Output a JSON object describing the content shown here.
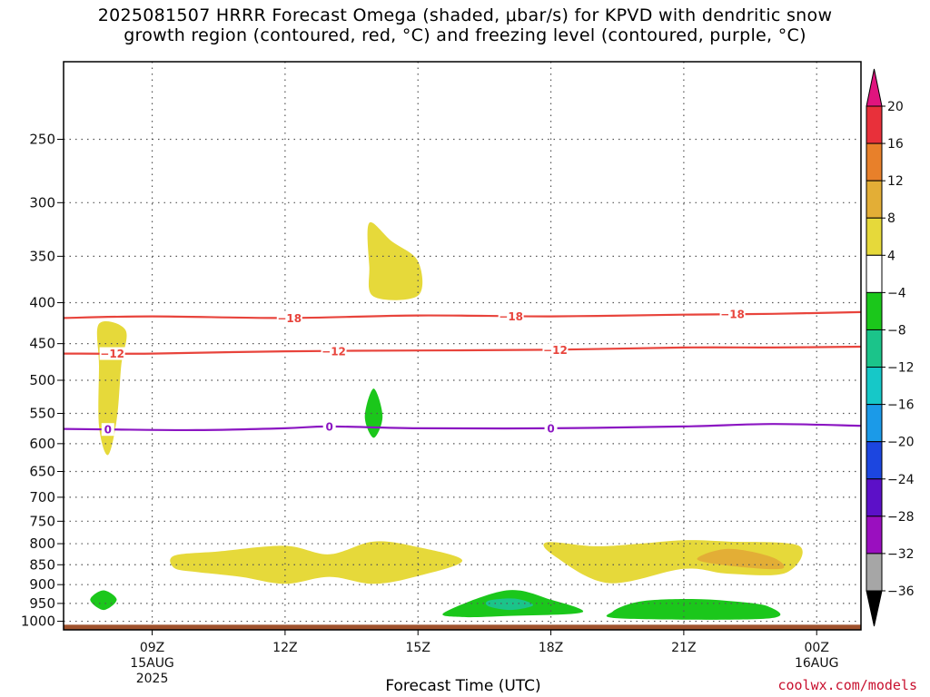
{
  "chart_data": {
    "type": "contour",
    "title_line1": "2025081507 HRRR Forecast Omega (shaded, μbar/s) for KPVD with dendritic snow",
    "title_line2": "growth region (contoured, red, °C) and freezing level (contoured, purple, °C)",
    "xlabel": "Forecast Time (UTC)",
    "ylabel": "",
    "y_axis": {
      "scale": "log-pressure",
      "ticks": [
        250,
        300,
        350,
        400,
        450,
        500,
        550,
        600,
        650,
        700,
        750,
        800,
        850,
        900,
        950,
        1000
      ],
      "range_hPa": [
        200,
        1025
      ],
      "grid": true
    },
    "x_axis": {
      "range_hours": [
        7,
        25
      ],
      "ticks": [
        {
          "hour": 9,
          "label": "09Z",
          "sub1": "15AUG",
          "sub2": "2025"
        },
        {
          "hour": 12,
          "label": "12Z",
          "sub1": "",
          "sub2": ""
        },
        {
          "hour": 15,
          "label": "15Z",
          "sub1": "",
          "sub2": ""
        },
        {
          "hour": 18,
          "label": "18Z",
          "sub1": "",
          "sub2": ""
        },
        {
          "hour": 21,
          "label": "21Z",
          "sub1": "",
          "sub2": ""
        },
        {
          "hour": 24,
          "label": "00Z",
          "sub1": "16AUG",
          "sub2": ""
        }
      ],
      "grid": true
    },
    "colorbar": {
      "labels": [
        20,
        16,
        12,
        8,
        4,
        -4,
        -8,
        -12,
        -16,
        -20,
        -24,
        -28,
        -32,
        -36
      ],
      "colors": [
        "#e8303a",
        "#e8802a",
        "#e3ae36",
        "#e6d93a",
        "#ffffff",
        "#1bc71b",
        "#1bc48a",
        "#16c8c8",
        "#1b9ae8",
        "#1c46e0",
        "#5c10c8",
        "#9a0fbf",
        "#a6a6a6"
      ],
      "top_arrow_color": "#e0147e",
      "bottom_arrow_color": "#000000"
    },
    "contours": [
      {
        "name": "-18",
        "color": "#e8443c",
        "points": [
          [
            7,
            418
          ],
          [
            9,
            416
          ],
          [
            12,
            418
          ],
          [
            15,
            415
          ],
          [
            18,
            416
          ],
          [
            21,
            414
          ],
          [
            23,
            413
          ],
          [
            25,
            411
          ]
        ],
        "labels_at": [
          12.1,
          17.1,
          22.1
        ]
      },
      {
        "name": "-12",
        "color": "#e8443c",
        "points": [
          [
            7,
            463
          ],
          [
            9,
            463
          ],
          [
            12,
            460
          ],
          [
            15,
            459
          ],
          [
            18,
            458
          ],
          [
            21,
            455
          ],
          [
            23,
            455
          ],
          [
            25,
            454
          ]
        ],
        "labels_at": [
          8.1,
          13.1,
          18.1
        ]
      },
      {
        "name": "0",
        "color": "#8b16c2",
        "points": [
          [
            7,
            575
          ],
          [
            8,
            576
          ],
          [
            10,
            577
          ],
          [
            12,
            574
          ],
          [
            13,
            571
          ],
          [
            15,
            574
          ],
          [
            18,
            574
          ],
          [
            21,
            571
          ],
          [
            23,
            567
          ],
          [
            25,
            570
          ]
        ],
        "labels_at": [
          8.0,
          13.0,
          18.0
        ]
      }
    ],
    "shaded_regions": [
      {
        "value_bin": "4 to 8",
        "color": "#e6d93a",
        "outline": [
          [
            7.8,
            425
          ],
          [
            8.4,
            433
          ],
          [
            8.3,
            480
          ],
          [
            8.2,
            560
          ],
          [
            8.0,
            620
          ],
          [
            7.8,
            570
          ],
          [
            7.8,
            480
          ]
        ]
      },
      {
        "value_bin": "4 to 8",
        "color": "#e6d93a",
        "outline": [
          [
            13.9,
            318
          ],
          [
            14.4,
            335
          ],
          [
            15.0,
            355
          ],
          [
            15.0,
            392
          ],
          [
            14.0,
            393
          ],
          [
            13.9,
            360
          ]
        ]
      },
      {
        "value_bin": "4 to 8",
        "color": "#e6d93a",
        "outline": [
          [
            9.5,
            828
          ],
          [
            10.5,
            818
          ],
          [
            12.0,
            805
          ],
          [
            13.0,
            825
          ],
          [
            14.0,
            795
          ],
          [
            15.0,
            808
          ],
          [
            16.0,
            840
          ],
          [
            15.0,
            878
          ],
          [
            14.0,
            898
          ],
          [
            13.0,
            880
          ],
          [
            12.0,
            898
          ],
          [
            11.0,
            880
          ],
          [
            10.0,
            868
          ],
          [
            9.5,
            858
          ]
        ]
      },
      {
        "value_bin": "4 to 8",
        "color": "#e6d93a",
        "outline": [
          [
            17.9,
            797
          ],
          [
            19.0,
            806
          ],
          [
            20.0,
            800
          ],
          [
            21.0,
            792
          ],
          [
            22.0,
            795
          ],
          [
            23.6,
            805
          ],
          [
            23.3,
            870
          ],
          [
            22.0,
            872
          ],
          [
            21.0,
            860
          ],
          [
            19.3,
            896
          ],
          [
            18.1,
            830
          ]
        ]
      },
      {
        "value_bin": "8 to 12",
        "color": "#e3ae36",
        "outline": [
          [
            21.3,
            836
          ],
          [
            22.0,
            812
          ],
          [
            23.0,
            832
          ],
          [
            23.2,
            860
          ],
          [
            22.0,
            852
          ]
        ]
      },
      {
        "value_bin": "-4 to -8",
        "color": "#1bc71b",
        "outline": [
          [
            14.0,
            512
          ],
          [
            14.2,
            555
          ],
          [
            14.0,
            590
          ],
          [
            13.8,
            555
          ]
        ]
      },
      {
        "value_bin": "-4 to -8",
        "color": "#1bc71b",
        "outline": [
          [
            7.9,
            915
          ],
          [
            8.2,
            940
          ],
          [
            7.9,
            968
          ],
          [
            7.6,
            940
          ]
        ]
      },
      {
        "value_bin": "-4 to -8",
        "color": "#1bc71b",
        "outline": [
          [
            15.6,
            975
          ],
          [
            17.0,
            915
          ],
          [
            18.0,
            940
          ],
          [
            18.7,
            975
          ],
          [
            17.0,
            985
          ],
          [
            16.0,
            988
          ]
        ]
      },
      {
        "value_bin": "-4 to -8",
        "color": "#1bc71b",
        "outline": [
          [
            19.4,
            972
          ],
          [
            20.0,
            945
          ],
          [
            21.0,
            938
          ],
          [
            22.0,
            943
          ],
          [
            22.9,
            958
          ],
          [
            22.9,
            992
          ],
          [
            19.6,
            992
          ]
        ]
      },
      {
        "value_bin": "-8 to -12",
        "color": "#1bc48a",
        "outline": [
          [
            16.6,
            942
          ],
          [
            17.2,
            937
          ],
          [
            17.6,
            955
          ],
          [
            17.1,
            968
          ],
          [
            16.6,
            958
          ]
        ]
      }
    ],
    "ground": {
      "color": "#a0522d",
      "from_hPa": 1010
    }
  },
  "credit": "coolwx.com/models"
}
